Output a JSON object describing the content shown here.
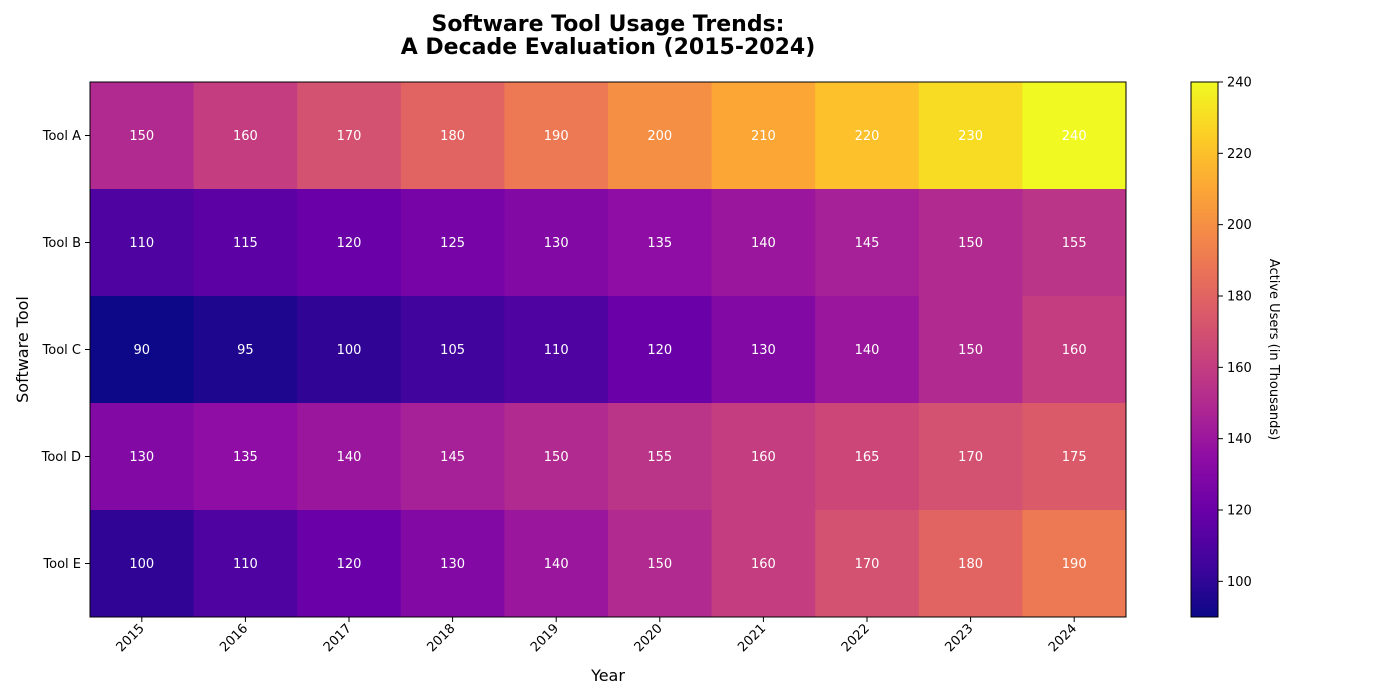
{
  "chart_data": {
    "type": "heatmap",
    "title_lines": [
      "Software Tool Usage Trends:",
      "A Decade Evaluation (2015-2024)"
    ],
    "xlabel": "Year",
    "ylabel": "Software Tool",
    "x": [
      "2015",
      "2016",
      "2017",
      "2018",
      "2019",
      "2020",
      "2021",
      "2022",
      "2023",
      "2024"
    ],
    "y": [
      "Tool A",
      "Tool B",
      "Tool C",
      "Tool D",
      "Tool E"
    ],
    "values": [
      [
        150,
        160,
        170,
        180,
        190,
        200,
        210,
        220,
        230,
        240
      ],
      [
        110,
        115,
        120,
        125,
        130,
        135,
        140,
        145,
        150,
        155
      ],
      [
        90,
        95,
        100,
        105,
        110,
        120,
        130,
        140,
        150,
        160
      ],
      [
        130,
        135,
        140,
        145,
        150,
        155,
        160,
        165,
        170,
        175
      ],
      [
        100,
        110,
        120,
        130,
        140,
        150,
        160,
        170,
        180,
        190
      ]
    ],
    "colormap": "plasma",
    "value_range": [
      90,
      240
    ],
    "colorbar": {
      "label": "Active Users (in Thousands)",
      "ticks": [
        100,
        120,
        140,
        160,
        180,
        200,
        220,
        240
      ]
    },
    "annotations": "cell values shown in white",
    "x_tick_rotation_deg": 45
  }
}
